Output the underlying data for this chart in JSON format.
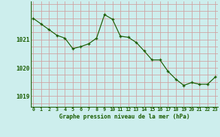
{
  "x": [
    0,
    1,
    2,
    3,
    4,
    5,
    6,
    7,
    8,
    9,
    10,
    11,
    12,
    13,
    14,
    15,
    16,
    17,
    18,
    19,
    20,
    21,
    22,
    23
  ],
  "y": [
    1021.75,
    1021.55,
    1021.35,
    1021.15,
    1021.05,
    1020.68,
    1020.75,
    1020.85,
    1021.05,
    1021.88,
    1021.72,
    1021.12,
    1021.08,
    1020.9,
    1020.6,
    1020.28,
    1020.28,
    1019.88,
    1019.6,
    1019.38,
    1019.48,
    1019.42,
    1019.42,
    1019.68
  ],
  "bg_color": "#cdeeed",
  "line_color": "#1a5c00",
  "marker_color": "#1a5c00",
  "grid_color": "#d0a0a0",
  "ylabel_ticks": [
    1019,
    1020,
    1021
  ],
  "xlabel_label": "Graphe pression niveau de la mer (hPa)",
  "ylim": [
    1018.62,
    1022.35
  ],
  "xlim": [
    -0.3,
    23.3
  ],
  "axis_label_color": "#1a5c00",
  "tick_color": "#1a5c00"
}
